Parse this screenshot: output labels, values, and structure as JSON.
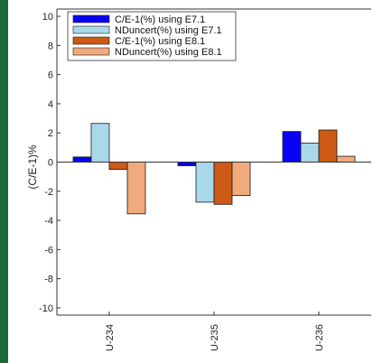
{
  "chart_data": {
    "type": "bar",
    "title": "",
    "xlabel": "",
    "ylabel": "(C/E-1)%",
    "ylim": [
      -10.5,
      10.5
    ],
    "yticks": [
      -10,
      -8,
      -6,
      -4,
      -2,
      0,
      2,
      4,
      6,
      8,
      10
    ],
    "grid": false,
    "legend_position": "top-left",
    "categories": [
      "U-234",
      "U-235",
      "U-236"
    ],
    "series": [
      {
        "name": "C/E-1(%) using E7.1",
        "color": "#0a00f5",
        "values": [
          0.35,
          -0.25,
          2.1
        ]
      },
      {
        "name": "NDuncert(%) using E7.1",
        "color": "#a9d8e8",
        "values": [
          2.65,
          -2.75,
          1.3
        ]
      },
      {
        "name": "C/E-1(%) using E8.1",
        "color": "#cc5a14",
        "values": [
          -0.5,
          -2.9,
          2.2
        ]
      },
      {
        "name": "NDuncert(%) using E8.1",
        "color": "#f0aa7c",
        "values": [
          -3.55,
          -2.3,
          0.4
        ]
      }
    ]
  }
}
